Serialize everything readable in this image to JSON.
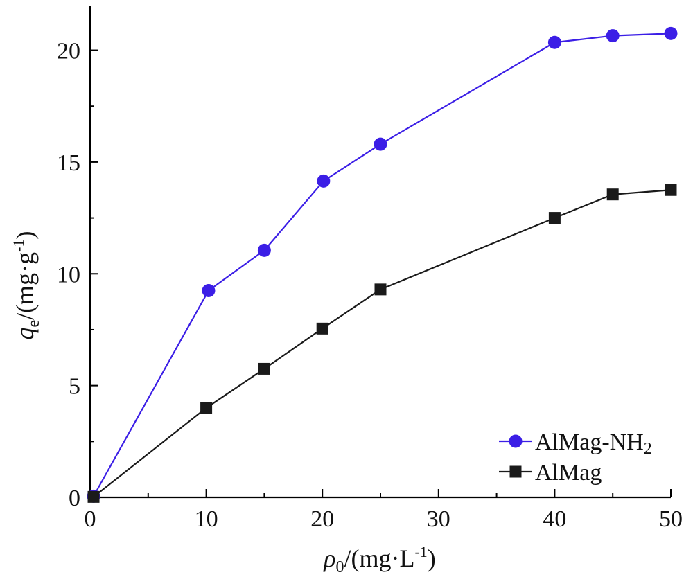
{
  "chart_data": {
    "type": "line",
    "xlabel": {
      "symbol": "ρ",
      "sub": "0",
      "unit_pre": "/(mg·L",
      "unit_sup": "-1",
      "unit_post": ")"
    },
    "ylabel": {
      "symbol": "q",
      "sub": "e",
      "unit_pre": "/(mg·g",
      "unit_sup": "-1",
      "unit_post": ")"
    },
    "xlim": [
      0,
      50
    ],
    "ylim": [
      0,
      22
    ],
    "xticks": [
      0,
      10,
      20,
      30,
      40,
      50
    ],
    "yticks": [
      0,
      5,
      10,
      15,
      20
    ],
    "grid": false,
    "legend_position": "bottom-right",
    "series": [
      {
        "name": "AlMag-NH",
        "name_sub": "2",
        "color": "#3b1ee6",
        "marker": "circle",
        "x": [
          0.3,
          10.2,
          15,
          20.1,
          25,
          40,
          45,
          50
        ],
        "y": [
          0.05,
          9.25,
          11.05,
          14.15,
          15.8,
          20.35,
          20.65,
          20.75
        ]
      },
      {
        "name": "AlMag",
        "color": "#1a1a1a",
        "marker": "square",
        "x": [
          0.3,
          10,
          15,
          20,
          25,
          40,
          45,
          50
        ],
        "y": [
          0.02,
          4.0,
          5.75,
          7.55,
          9.3,
          12.5,
          13.55,
          13.75
        ]
      }
    ]
  }
}
